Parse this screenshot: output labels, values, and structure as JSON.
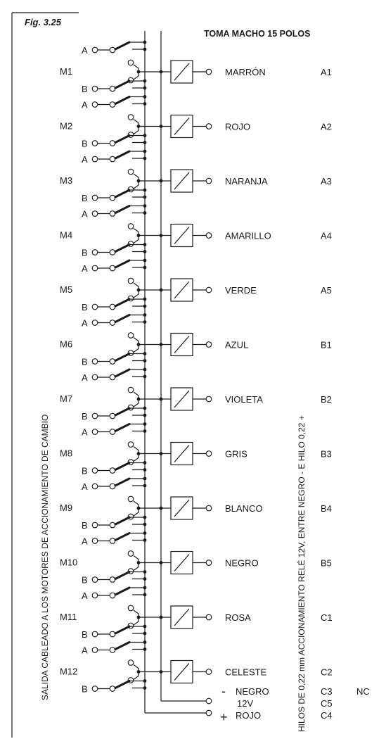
{
  "figure_label": "Fig. 3.25",
  "title": "TOMA MACHO 15 POLOS",
  "left_vertical_label": "SALIDA CABLEADO A LOS MOTORES DE ACCIONAMIENTO  DE CAMBIO",
  "right_vertical_label": "HILOS DE 0,22 mm ACCIONAMIENTO RELÉ 12V, ENTRE NEGRO - E HILO 0,22 +",
  "switch_labels": {
    "a": "A",
    "b": "B"
  },
  "motors": [
    {
      "motor": "M1",
      "color": "MARRÓN",
      "pin": "A1"
    },
    {
      "motor": "M2",
      "color": "ROJO",
      "pin": "A2"
    },
    {
      "motor": "M3",
      "color": "NARANJA",
      "pin": "A3"
    },
    {
      "motor": "M4",
      "color": "AMARILLO",
      "pin": "A4"
    },
    {
      "motor": "M5",
      "color": "VERDE",
      "pin": "A5"
    },
    {
      "motor": "M6",
      "color": "AZUL",
      "pin": "B1"
    },
    {
      "motor": "M7",
      "color": "VIOLETA",
      "pin": "B2"
    },
    {
      "motor": "M8",
      "color": "GRIS",
      "pin": "B3"
    },
    {
      "motor": "M9",
      "color": "BLANCO",
      "pin": "B4"
    },
    {
      "motor": "M10",
      "color": "NEGRO",
      "pin": "B5"
    },
    {
      "motor": "M11",
      "color": "ROSA",
      "pin": "C1"
    },
    {
      "motor": "M12",
      "color": "CELESTE",
      "pin": "C2"
    }
  ],
  "power": {
    "negative": {
      "sign": "-",
      "label": "NEGRO",
      "pin": "C3",
      "note": "NC"
    },
    "voltage": {
      "label": "12V",
      "pin": "C5"
    },
    "positive": {
      "sign": "+",
      "label": "ROJO",
      "pin": "C4"
    }
  }
}
